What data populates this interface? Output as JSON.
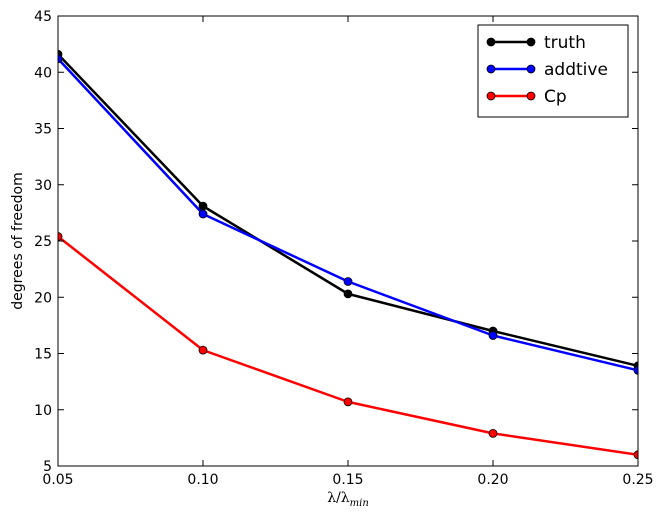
{
  "chart_data": {
    "type": "line",
    "title": "",
    "xlabel": "λ/λ",
    "xlabel_subscript": "min",
    "ylabel": "degrees of freedom",
    "x": [
      0.05,
      0.1,
      0.15,
      0.2,
      0.25
    ],
    "xlim": [
      0.05,
      0.25
    ],
    "ylim": [
      5,
      45
    ],
    "xticks": [
      "0.05",
      "0.10",
      "0.15",
      "0.20",
      "0.25"
    ],
    "yticks": [
      "5",
      "10",
      "15",
      "20",
      "25",
      "30",
      "35",
      "40",
      "45"
    ],
    "grid": false,
    "legend_position": "top-right",
    "series": [
      {
        "name": "truth",
        "color": "#000000",
        "values": [
          41.6,
          28.1,
          20.3,
          17.0,
          13.9
        ]
      },
      {
        "name": "addtive",
        "color": "#0000ff",
        "values": [
          41.2,
          27.4,
          21.4,
          16.6,
          13.5
        ]
      },
      {
        "name": "Cp",
        "color": "#ff0000",
        "values": [
          25.4,
          15.3,
          10.7,
          7.9,
          6.0
        ]
      }
    ]
  }
}
